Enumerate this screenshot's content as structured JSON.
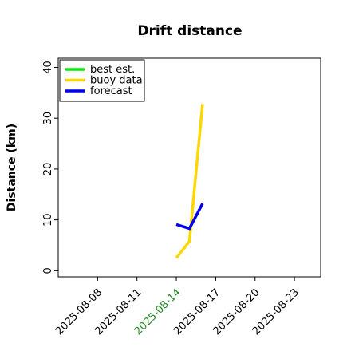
{
  "chart_data": {
    "type": "line",
    "title": "Drift distance",
    "ylabel": "Distance (km)",
    "x": [
      "2025-08-14",
      "2025-08-15",
      "2025-08-16"
    ],
    "series": [
      {
        "name": "best est.",
        "color": "#00ee00",
        "values": [
          null,
          null,
          null
        ]
      },
      {
        "name": "buoy data",
        "color": "#ffd700",
        "values": [
          2.5,
          5.8,
          32.8
        ]
      },
      {
        "name": "forecast",
        "color": "#0000ee",
        "values": [
          9.1,
          8.3,
          13.2
        ]
      }
    ],
    "xlim": [
      "2025-08-05",
      "2025-08-25"
    ],
    "xticks": [
      "2025-08-08",
      "2025-08-11",
      "2025-08-14",
      "2025-08-17",
      "2025-08-20",
      "2025-08-23"
    ],
    "xtick_colors": [
      "#000000",
      "#000000",
      "#228b22",
      "#000000",
      "#000000",
      "#000000"
    ],
    "ylim": [
      -1.2,
      41.8
    ],
    "yticks": [
      0,
      10,
      20,
      30,
      40
    ],
    "legend": "upper left",
    "grid": false
  }
}
